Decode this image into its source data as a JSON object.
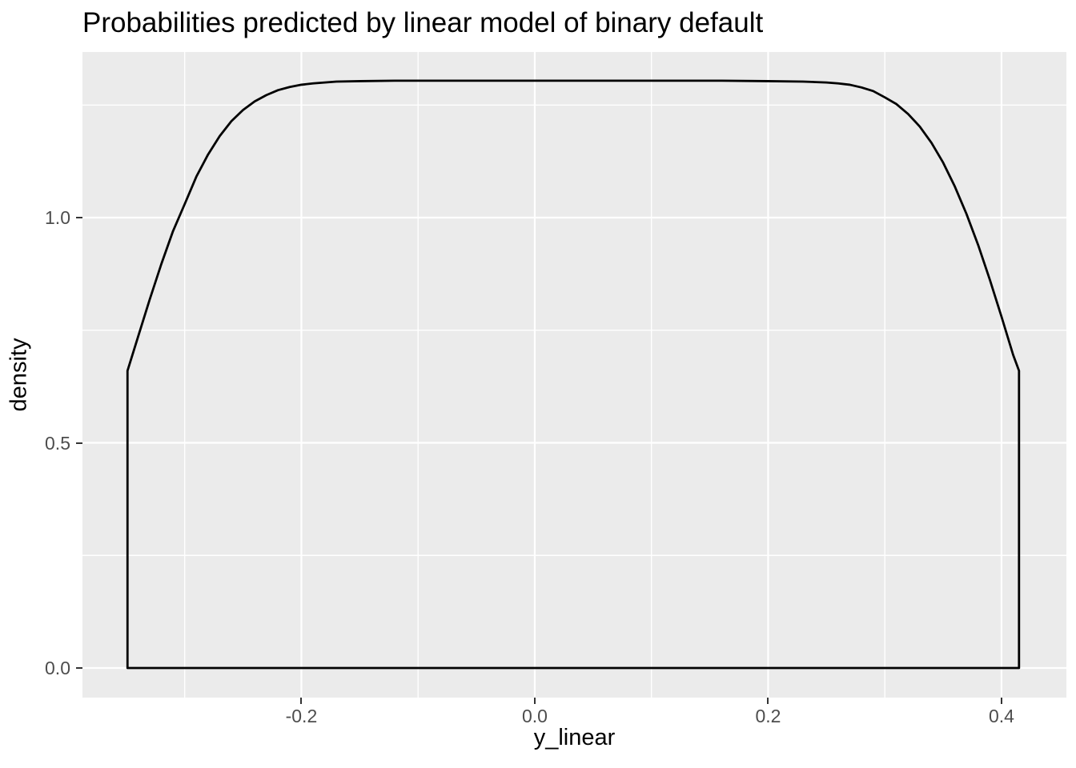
{
  "title": "Probabilities predicted by linear model of binary default",
  "colors": {
    "page_bg": "#FFFFFF",
    "panel_bg": "#EBEBEB",
    "grid": "#FFFFFF",
    "curve": "#000000",
    "tick_mark": "#333333",
    "tick_label": "#4D4D4D",
    "axis_title": "#000000"
  },
  "chart_data": {
    "type": "area",
    "subtype": "kernel-density-outline",
    "title": "Probabilities predicted by linear model of binary default",
    "xlabel": "y_linear",
    "ylabel": "density",
    "legend": "none",
    "grid": "on",
    "xlim": [
      -0.3876,
      0.4556
    ],
    "ylim": [
      -0.0657,
      1.3677
    ],
    "x_major_ticks": [
      {
        "value": -0.2,
        "label": "-0.2"
      },
      {
        "value": 0.0,
        "label": "0.0"
      },
      {
        "value": 0.2,
        "label": "0.2"
      },
      {
        "value": 0.4,
        "label": "0.4"
      }
    ],
    "y_major_ticks": [
      {
        "value": 0.0,
        "label": "0.0"
      },
      {
        "value": 0.5,
        "label": "0.5"
      },
      {
        "value": 1.0,
        "label": "1.0"
      }
    ],
    "x_minor_gridlines": [
      -0.3,
      -0.1,
      0.1,
      0.3
    ],
    "y_minor_gridlines": [
      0.25,
      0.75,
      1.25
    ],
    "grid_major_width": 2.2,
    "grid_minor_width": 1.4,
    "curve_stroke_width": 2.8,
    "curve_closed": true,
    "curve": [
      [
        -0.349,
        0.0
      ],
      [
        -0.349,
        0.66
      ],
      [
        -0.34,
        0.735
      ],
      [
        -0.33,
        0.818
      ],
      [
        -0.32,
        0.897
      ],
      [
        -0.31,
        0.97
      ],
      [
        -0.3,
        1.03
      ],
      [
        -0.29,
        1.091
      ],
      [
        -0.28,
        1.14
      ],
      [
        -0.27,
        1.181
      ],
      [
        -0.26,
        1.214
      ],
      [
        -0.25,
        1.239
      ],
      [
        -0.24,
        1.258
      ],
      [
        -0.23,
        1.272
      ],
      [
        -0.22,
        1.283
      ],
      [
        -0.21,
        1.29
      ],
      [
        -0.2,
        1.295
      ],
      [
        -0.19,
        1.298
      ],
      [
        -0.18,
        1.3
      ],
      [
        -0.17,
        1.302
      ],
      [
        -0.15,
        1.303
      ],
      [
        -0.12,
        1.304
      ],
      [
        -0.06,
        1.304
      ],
      [
        0.0,
        1.304
      ],
      [
        0.06,
        1.304
      ],
      [
        0.12,
        1.304
      ],
      [
        0.16,
        1.304
      ],
      [
        0.2,
        1.303
      ],
      [
        0.23,
        1.302
      ],
      [
        0.25,
        1.3
      ],
      [
        0.26,
        1.298
      ],
      [
        0.27,
        1.295
      ],
      [
        0.28,
        1.289
      ],
      [
        0.29,
        1.281
      ],
      [
        0.3,
        1.267
      ],
      [
        0.31,
        1.252
      ],
      [
        0.32,
        1.23
      ],
      [
        0.33,
        1.202
      ],
      [
        0.34,
        1.166
      ],
      [
        0.35,
        1.122
      ],
      [
        0.36,
        1.069
      ],
      [
        0.37,
        1.008
      ],
      [
        0.38,
        0.939
      ],
      [
        0.39,
        0.862
      ],
      [
        0.4,
        0.78
      ],
      [
        0.41,
        0.695
      ],
      [
        0.415,
        0.66
      ],
      [
        0.415,
        0.0
      ]
    ]
  }
}
